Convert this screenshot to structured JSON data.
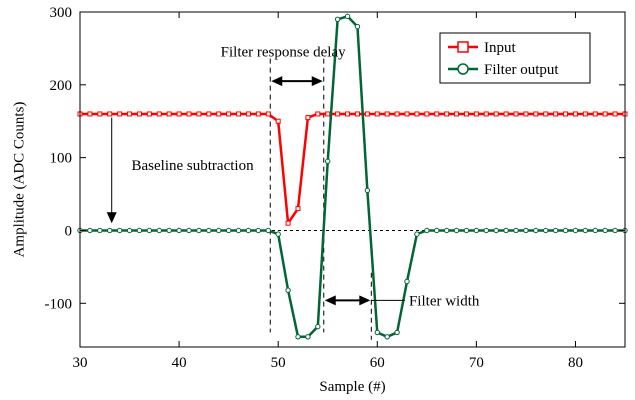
{
  "chart_data": {
    "type": "line",
    "title": "",
    "xlabel": "Sample (#)",
    "ylabel": "Amplitude (ADC Counts)",
    "xlim": [
      30,
      85
    ],
    "ylim": [
      -160,
      300
    ],
    "xticks": [
      30,
      40,
      50,
      60,
      70,
      80
    ],
    "yticks": [
      -100,
      0,
      100,
      200,
      300
    ],
    "xtick_labels": [
      "30",
      "40",
      "50",
      "60",
      "70",
      "80"
    ],
    "ytick_labels": [
      "-100",
      "0",
      "100",
      "200",
      "300"
    ],
    "grid": false,
    "legend_position": "top-right",
    "x": [
      30,
      31,
      32,
      33,
      34,
      35,
      36,
      37,
      38,
      39,
      40,
      41,
      42,
      43,
      44,
      45,
      46,
      47,
      48,
      49,
      50,
      51,
      52,
      53,
      54,
      55,
      56,
      57,
      58,
      59,
      60,
      61,
      62,
      63,
      64,
      65,
      66,
      67,
      68,
      69,
      70,
      71,
      72,
      73,
      74,
      75,
      76,
      77,
      78,
      79,
      80,
      81,
      82,
      83,
      84,
      85
    ],
    "series": [
      {
        "name": "Input",
        "color": "#ff0000",
        "marker": "square",
        "values": [
          160,
          160,
          160,
          160,
          160,
          160,
          160,
          160,
          160,
          160,
          160,
          160,
          160,
          160,
          160,
          160,
          160,
          160,
          160,
          160,
          150,
          10,
          30,
          155,
          160,
          160,
          160,
          160,
          160,
          160,
          160,
          160,
          160,
          160,
          160,
          160,
          160,
          160,
          160,
          160,
          160,
          160,
          160,
          160,
          160,
          160,
          160,
          160,
          160,
          160,
          160,
          160,
          160,
          160,
          160,
          160
        ]
      },
      {
        "name": "Filter output",
        "color": "#006633",
        "marker": "circle",
        "values": [
          0,
          0,
          0,
          0,
          0,
          0,
          0,
          0,
          0,
          0,
          0,
          0,
          0,
          0,
          0,
          0,
          0,
          0,
          0,
          0,
          -5,
          -82,
          -146,
          -146,
          -132,
          95,
          290,
          294,
          280,
          55,
          -140,
          -146,
          -140,
          -70,
          -5,
          0,
          0,
          0,
          0,
          0,
          0,
          0,
          0,
          0,
          0,
          0,
          0,
          0,
          0,
          0,
          0,
          0,
          0,
          0,
          0,
          0
        ]
      }
    ],
    "annotations": {
      "baseline": "Baseline subtraction",
      "delay": "Filter response delay",
      "width": "Filter width"
    },
    "annotation_anchors": {
      "baseline_arrow": {
        "x": 33.2,
        "y_from": 155,
        "y_to": 10
      },
      "baseline_label": {
        "x": 35.2,
        "y": 90
      },
      "delay_lines": {
        "x1": 49.2,
        "x2": 54.6,
        "y_top": 236,
        "y_bottom": -140
      },
      "delay_arrow_y": 205,
      "delay_label": {
        "x": 50.5,
        "y": 246
      },
      "width_lines": {
        "x1": 54.6,
        "x2": 59.4,
        "y_top": -58,
        "y_bottom": -150
      },
      "width_arrow_y": -96,
      "width_label": {
        "x": 63.2,
        "y": -96
      },
      "zero_line": {
        "x_from": 30,
        "x_to": 85,
        "y": 0
      }
    }
  }
}
